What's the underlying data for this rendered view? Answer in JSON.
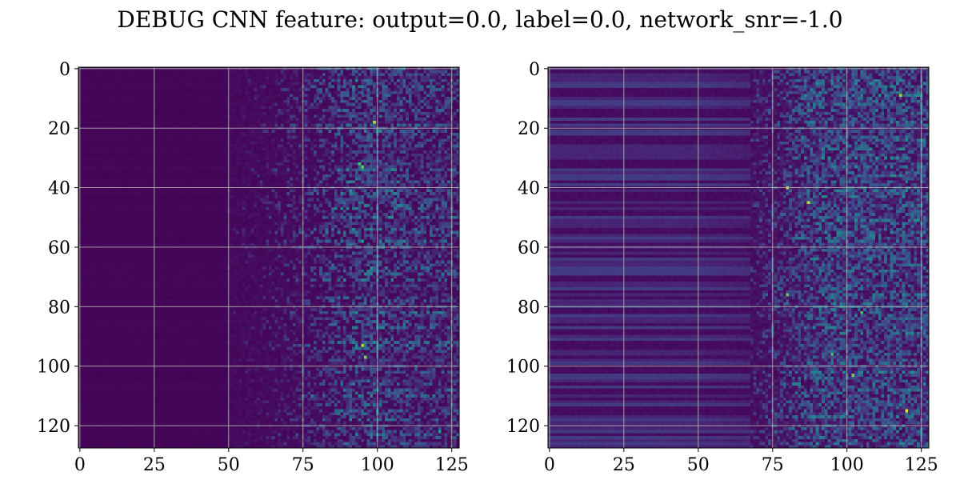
{
  "figure": {
    "title": "DEBUG CNN feature: output=0.0, label=0.0, network_snr=-1.0"
  },
  "chart_data": [
    {
      "type": "heatmap",
      "title": "",
      "xlabel": "",
      "ylabel": "",
      "rows": 128,
      "cols": 128,
      "xlim": [
        0,
        127
      ],
      "ylim": [
        127,
        0
      ],
      "y_inverted": true,
      "x_ticks": [
        0,
        25,
        50,
        75,
        100,
        125
      ],
      "y_ticks": [
        0,
        20,
        40,
        60,
        80,
        100,
        120
      ],
      "grid": true,
      "colormap": "viridis",
      "description_of_values": "columns 0-49 near 0; activity increases from ~col 50 rightward with peak hot spots around cols 90-100",
      "hot_spots": [
        {
          "col": 99,
          "row": 18,
          "value": 0.85
        },
        {
          "col": 94,
          "row": 32,
          "value": 0.7
        },
        {
          "col": 95,
          "row": 33,
          "value": 0.75
        },
        {
          "col": 95,
          "row": 93,
          "value": 0.9
        },
        {
          "col": 96,
          "row": 97,
          "value": 0.8
        },
        {
          "col": 121,
          "row": 122,
          "value": 0.55
        }
      ]
    },
    {
      "type": "heatmap",
      "title": "",
      "xlabel": "",
      "ylabel": "",
      "rows": 128,
      "cols": 128,
      "xlim": [
        0,
        127
      ],
      "ylim": [
        127,
        0
      ],
      "y_inverted": true,
      "x_ticks": [
        0,
        25,
        50,
        75,
        100,
        125
      ],
      "y_ticks": [
        0,
        20,
        40,
        60,
        80,
        100,
        120
      ],
      "grid": true,
      "colormap": "viridis",
      "description_of_values": "horizontal striped low values across columns 0-70; noisy high activity from ~col 70 rightward",
      "hot_spots": [
        {
          "col": 80,
          "row": 40,
          "value": 0.95
        },
        {
          "col": 87,
          "row": 45,
          "value": 0.9
        },
        {
          "col": 118,
          "row": 9,
          "value": 0.85
        },
        {
          "col": 120,
          "row": 115,
          "value": 0.95
        },
        {
          "col": 102,
          "row": 103,
          "value": 0.8
        },
        {
          "col": 105,
          "row": 82,
          "value": 0.7
        },
        {
          "col": 80,
          "row": 76,
          "value": 0.75
        },
        {
          "col": 95,
          "row": 96,
          "value": 0.7
        }
      ]
    }
  ]
}
